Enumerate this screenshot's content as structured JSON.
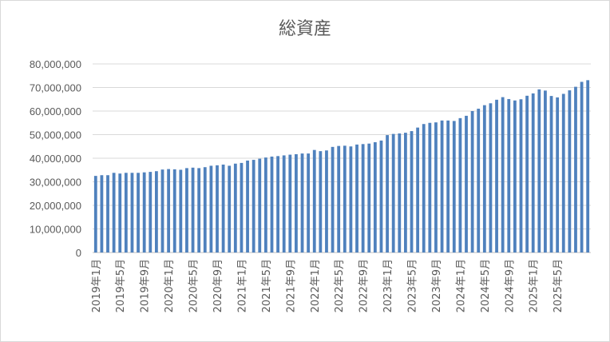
{
  "chart_data": {
    "type": "bar",
    "title": "総資産",
    "xlabel": "",
    "ylabel": "",
    "ylim": [
      0,
      80000000
    ],
    "yticks": [
      "0",
      "10,000,000",
      "20,000,000",
      "30,000,000",
      "40,000,000",
      "50,000,000",
      "60,000,000",
      "70,000,000",
      "80,000,000"
    ],
    "grid": true,
    "legend": "none",
    "bar_color": "#4f81bd",
    "xtick_labels": [
      "2019年1月",
      "2019年5月",
      "2019年9月",
      "2020年1月",
      "2020年5月",
      "2020年9月",
      "2021年1月",
      "2021年5月",
      "2021年9月",
      "2022年1月",
      "2022年5月",
      "2022年9月",
      "2023年1月",
      "2023年5月",
      "2023年9月",
      "2024年1月",
      "2024年5月",
      "2024年9月",
      "2025年1月",
      "2025年5月"
    ],
    "values": [
      32500000,
      32800000,
      32800000,
      33800000,
      33500000,
      33800000,
      33800000,
      33800000,
      34000000,
      34200000,
      34500000,
      35200000,
      35400000,
      35300000,
      35100000,
      35800000,
      36000000,
      35800000,
      36200000,
      36800000,
      37000000,
      37300000,
      36800000,
      37700000,
      38000000,
      39000000,
      39300000,
      39800000,
      40300000,
      40700000,
      40900000,
      41200000,
      41500000,
      41700000,
      42000000,
      42000000,
      43500000,
      43000000,
      43300000,
      44800000,
      45200000,
      45300000,
      45000000,
      45800000,
      46000000,
      46200000,
      46800000,
      47500000,
      49800000,
      50300000,
      50500000,
      50800000,
      51500000,
      53000000,
      54500000,
      55000000,
      55200000,
      56000000,
      56000000,
      55800000,
      57000000,
      58000000,
      60000000,
      61000000,
      62500000,
      63300000,
      64800000,
      65900000,
      65100000,
      64500000,
      65000000,
      66500000,
      67500000,
      69200000,
      68700000,
      66400000,
      65800000,
      67300000,
      68800000,
      70300000,
      72400000,
      73100000
    ]
  }
}
